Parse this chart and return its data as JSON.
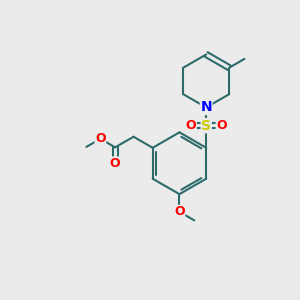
{
  "bg_color": "#ebebeb",
  "bond_color": "#2d6b6b",
  "bond_width": 1.5,
  "atom_colors": {
    "N": "#0000ff",
    "O": "#ff0000",
    "S": "#cccc00"
  },
  "fig_size": [
    3.0,
    3.0
  ],
  "dpi": 100
}
